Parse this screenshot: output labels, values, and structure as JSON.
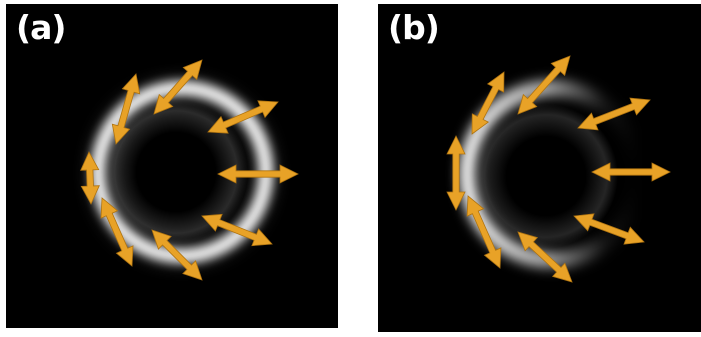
{
  "panels": [
    {
      "id": "a",
      "label": "(a)"
    },
    {
      "id": "b",
      "label": "(b)"
    }
  ],
  "colors": {
    "background": "#000000",
    "ring": "#ffffff",
    "arrow_fill": "#e8a227",
    "arrow_edge": "#b07410"
  }
}
